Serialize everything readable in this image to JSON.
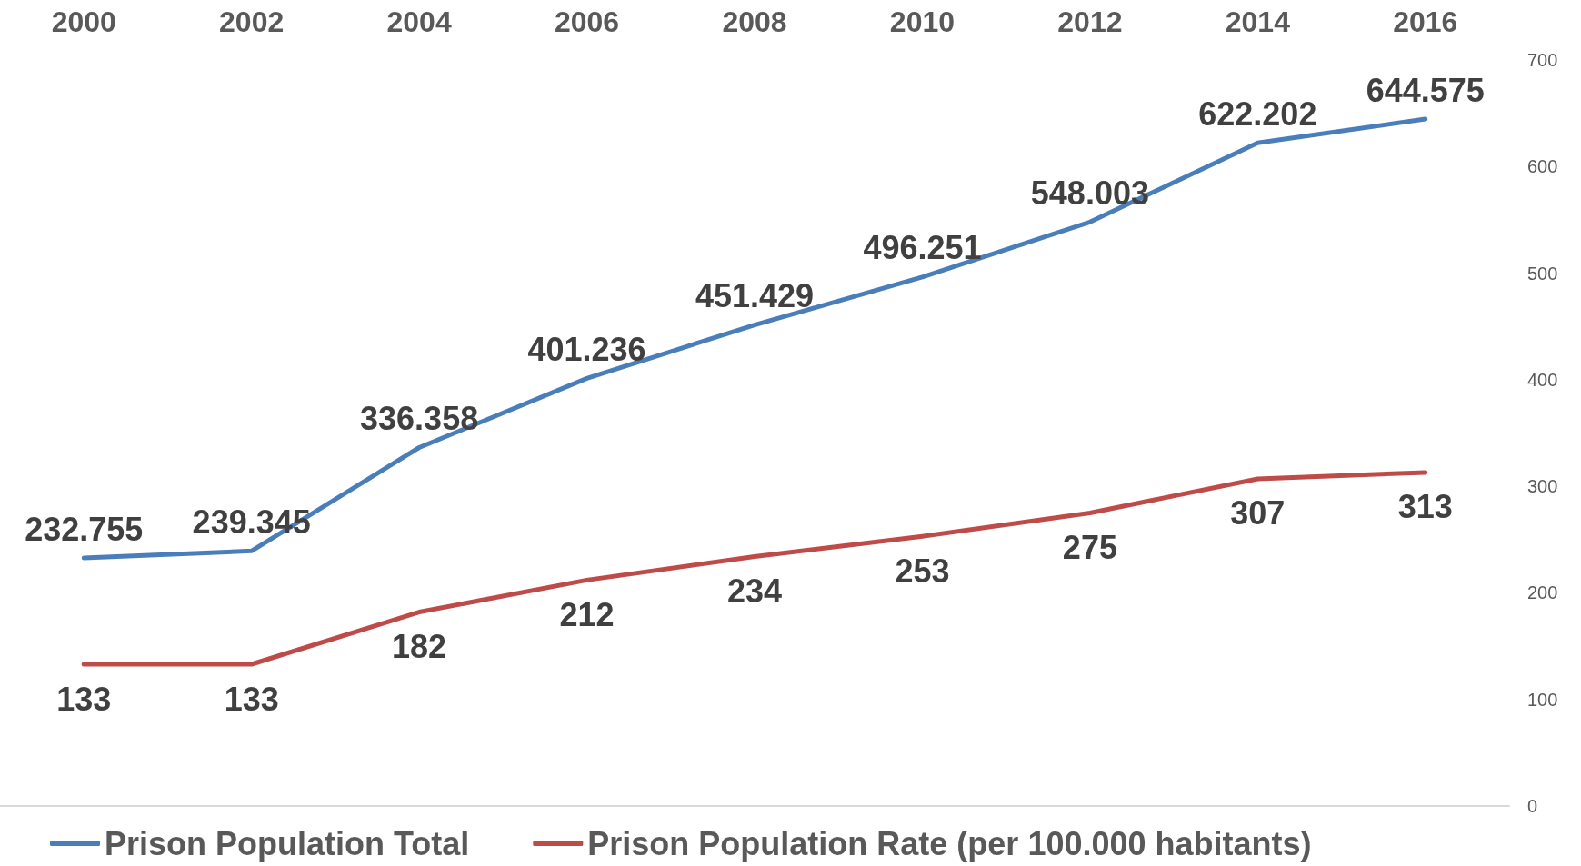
{
  "chart_data": {
    "type": "line",
    "categories": [
      "2000",
      "2002",
      "2004",
      "2006",
      "2008",
      "2010",
      "2012",
      "2014",
      "2016"
    ],
    "series": [
      {
        "name": "Prison Population Total",
        "color": "#4a7ebb",
        "values": [
          232.755,
          239.345,
          336.358,
          401.236,
          451.429,
          496.251,
          548.003,
          622.202,
          644.575
        ]
      },
      {
        "name": "Prison Population Rate (per 100.000 habitants)",
        "color": "#be4b48",
        "values": [
          133,
          133,
          182,
          212,
          234,
          253,
          275,
          307,
          313
        ]
      }
    ],
    "ylim": [
      0,
      700
    ],
    "yticks": [
      0,
      100,
      200,
      300,
      400,
      500,
      600,
      700
    ],
    "grid": false,
    "legend": "bottom",
    "data_labels": true,
    "marker": "none",
    "line_style": "solid"
  }
}
